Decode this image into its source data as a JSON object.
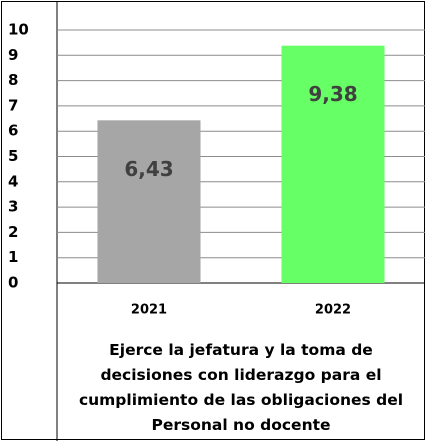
{
  "chart_data": {
    "type": "bar",
    "title": "Ejerce la jefatura y la toma de decisiones con liderazgo para el cumplimiento de las obligaciones del Personal no docente",
    "categories": [
      "2021",
      "2022"
    ],
    "values": [
      6.43,
      9.38
    ],
    "value_labels": [
      "6,43",
      "9,38"
    ],
    "colors": [
      "#a6a6a6",
      "#66ff66"
    ],
    "ylim": [
      0,
      10
    ],
    "yticks": [
      0,
      1,
      2,
      3,
      4,
      5,
      6,
      7,
      8,
      9,
      10
    ],
    "grid": true
  }
}
